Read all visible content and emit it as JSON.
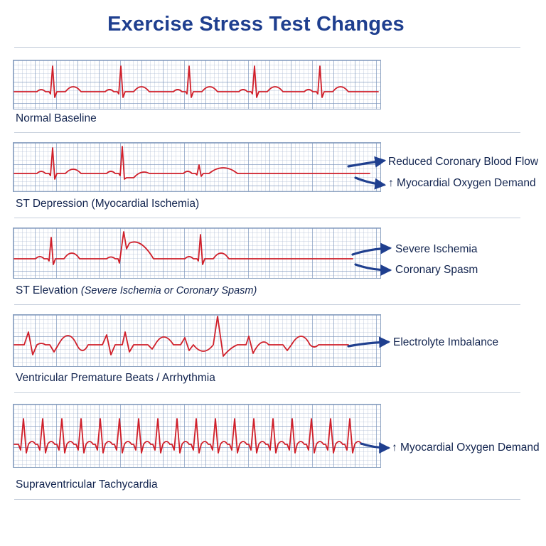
{
  "title": "Exercise Stress Test Changes",
  "colors": {
    "trace": "#d01f2a",
    "arrow": "#1f3f8f",
    "title": "#1f3f8f",
    "text": "#12244f",
    "grid": "#8ea4c2"
  },
  "panels": [
    {
      "label": "Normal Baseline",
      "label_paren": "",
      "notes": []
    },
    {
      "label": "ST Depression",
      "label_paren": "(Myocardial Ischemia)",
      "notes": [
        "Reduced Coronary Blood Flow",
        "↑ Myocardial Oxygen Demand"
      ]
    },
    {
      "label": "ST Elevation",
      "label_paren": "(Severe Ischemia or Coronary Spasm)",
      "notes": [
        "Severe Ischemia",
        "Coronary Spasm"
      ]
    },
    {
      "label": "Ventricular Premature Beats / Arrhythmia",
      "label_paren": "",
      "notes": [
        "Electrolyte Imbalance"
      ]
    },
    {
      "label": "Supraventricular Tachycardia",
      "label_paren": "",
      "notes": [
        "↑ Myocardial Oxygen Demand"
      ]
    }
  ],
  "arrow_icon": "right-arrow-icon"
}
